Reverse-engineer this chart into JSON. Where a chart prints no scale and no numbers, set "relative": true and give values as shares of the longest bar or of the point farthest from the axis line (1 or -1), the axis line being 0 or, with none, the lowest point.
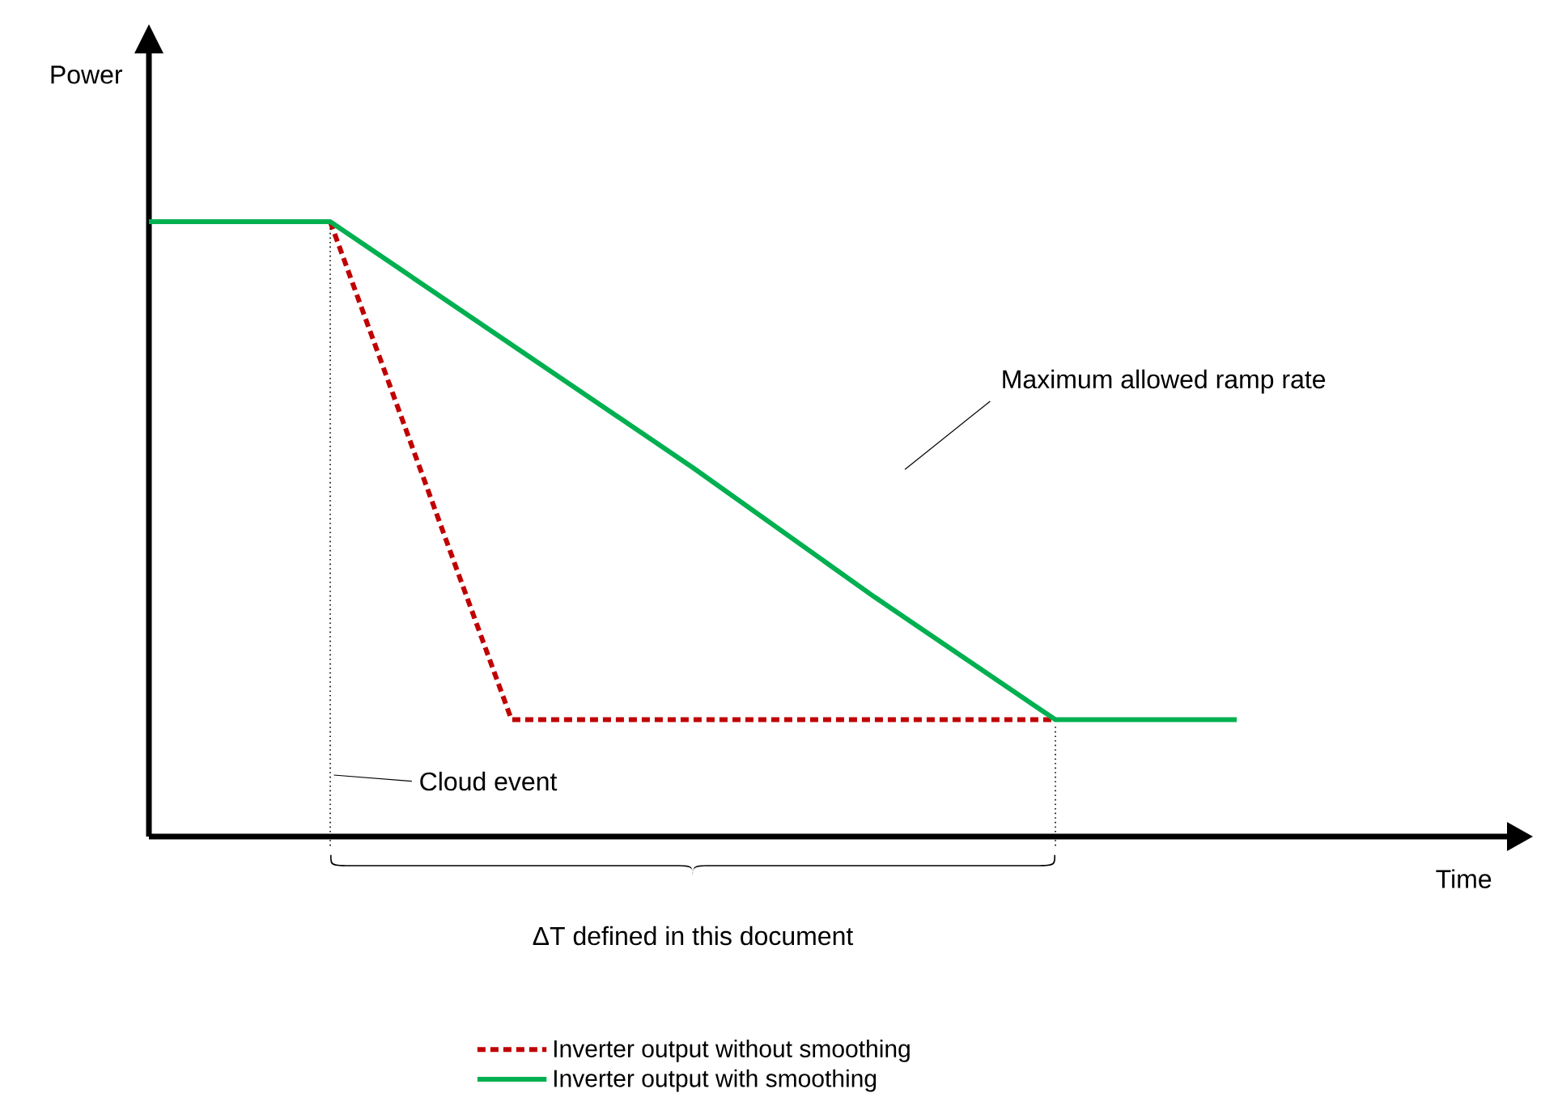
{
  "chart_data": {
    "type": "line",
    "relative": true,
    "categories": [
      null,
      null,
      null,
      null,
      null,
      null,
      null
    ],
    "series": [
      {
        "name": "Inverter output without smoothing",
        "color": "#c00000",
        "line_style": "dashed",
        "values": [
          null,
          1,
          0.19,
          0.19,
          0.19,
          0.19,
          null
        ]
      },
      {
        "name": "Inverter output with smoothing",
        "color": "#00b050",
        "line_style": "solid",
        "values": [
          1,
          1,
          0.8,
          0.6,
          0.39,
          0.19,
          0.19
        ]
      }
    ],
    "annotations": [
      "Power",
      "Time",
      "Maximum allowed ramp rate",
      "ΔT defined in this document",
      "Cloud event"
    ],
    "legend": "bottom",
    "marker": "none"
  }
}
